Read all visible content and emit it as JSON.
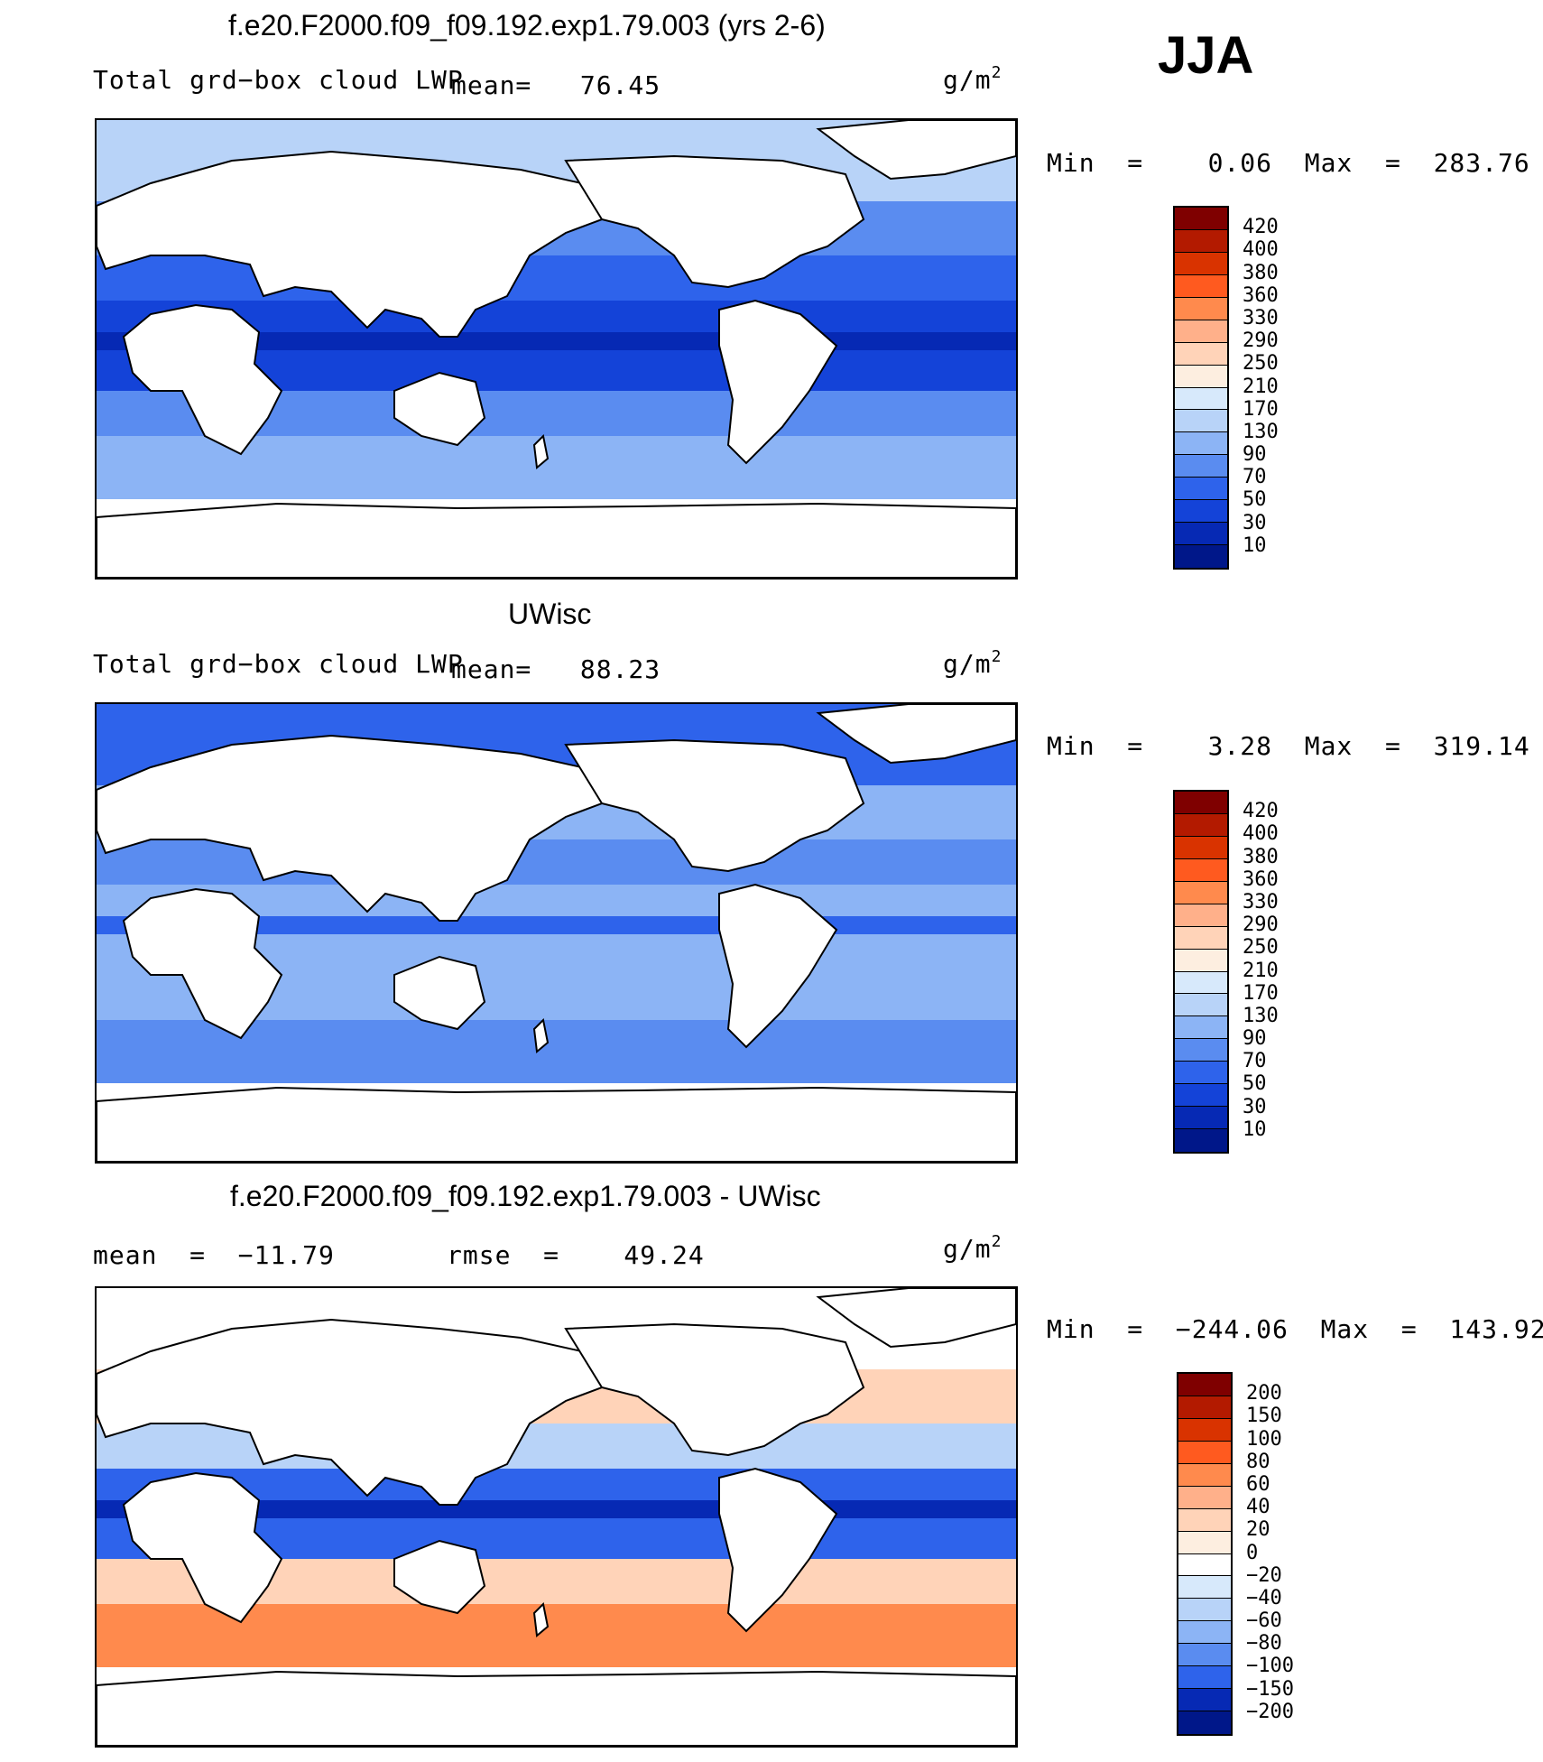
{
  "season": "JJA",
  "panels": [
    {
      "title": "f.e20.F2000.f09_f09.192.exp1.79.003 (yrs 2-6)",
      "variable": "Total grd−box cloud LWP",
      "stat_text": "mean=   76.45",
      "units": "g/m",
      "units_sup": "2",
      "minmax": "Min  =    0.06  Max  =  283.76",
      "colorbar": {
        "labels": [
          "420",
          "400",
          "380",
          "360",
          "330",
          "290",
          "250",
          "210",
          "170",
          "130",
          "90",
          "70",
          "50",
          "30",
          "10"
        ],
        "colors": [
          "#7f0000",
          "#b31a00",
          "#d93300",
          "#ff5a1f",
          "#ff8a4d",
          "#ffb08a",
          "#ffd3b8",
          "#fdeee0",
          "#d7e9fb",
          "#b8d3f8",
          "#8cb4f5",
          "#5a8cf0",
          "#2e63eb",
          "#1443d8",
          "#0629b4",
          "#001789"
        ]
      },
      "map_colors": {
        "polar": "#b8d3f8",
        "southern": "#8cb4f5",
        "mid": "#5a8cf0",
        "subtropic": "#2e63eb",
        "tropic": "#1443d8",
        "deep": "#0629b4"
      }
    },
    {
      "title": "UWisc",
      "variable": "Total grd−box cloud LWP",
      "stat_text": "mean=   88.23",
      "units": "g/m",
      "units_sup": "2",
      "minmax": "Min  =    3.28  Max  =  319.14",
      "colorbar": {
        "labels": [
          "420",
          "400",
          "380",
          "360",
          "330",
          "290",
          "250",
          "210",
          "170",
          "130",
          "90",
          "70",
          "50",
          "30",
          "10"
        ],
        "colors": [
          "#7f0000",
          "#b31a00",
          "#d93300",
          "#ff5a1f",
          "#ff8a4d",
          "#ffb08a",
          "#ffd3b8",
          "#fdeee0",
          "#d7e9fb",
          "#b8d3f8",
          "#8cb4f5",
          "#5a8cf0",
          "#2e63eb",
          "#1443d8",
          "#0629b4",
          "#001789"
        ]
      },
      "map_colors": {
        "polar": "#2e63eb",
        "southern": "#5a8cf0",
        "mid": "#8cb4f5",
        "subtropic": "#5a8cf0",
        "tropic": "#8cb4f5",
        "deep": "#2e63eb"
      }
    },
    {
      "title": "f.e20.F2000.f09_f09.192.exp1.79.003 - UWisc",
      "variable": "",
      "stat_text": "mean  =  −11.79",
      "stat_text2": "rmse  =    49.24",
      "units": "g/m",
      "units_sup": "2",
      "minmax": "Min  =  −244.06  Max  =  143.92",
      "colorbar": {
        "labels": [
          "200",
          "150",
          "100",
          "80",
          "60",
          "40",
          "20",
          "0",
          "−20",
          "−40",
          "−60",
          "−80",
          "−100",
          "−150",
          "−200"
        ],
        "colors": [
          "#7f0000",
          "#b31a00",
          "#d93300",
          "#ff5a1f",
          "#ff8a4d",
          "#ffb08a",
          "#ffd3b8",
          "#fdeee0",
          "#ffffff",
          "#d7e9fb",
          "#b8d3f8",
          "#8cb4f5",
          "#5a8cf0",
          "#2e63eb",
          "#0629b4",
          "#001789"
        ]
      },
      "map_colors": {
        "polar": "#ffffff",
        "southern": "#ff8a4d",
        "mid": "#ffd3b8",
        "subtropic": "#b8d3f8",
        "tropic": "#2e63eb",
        "deep": "#0629b4"
      }
    }
  ]
}
